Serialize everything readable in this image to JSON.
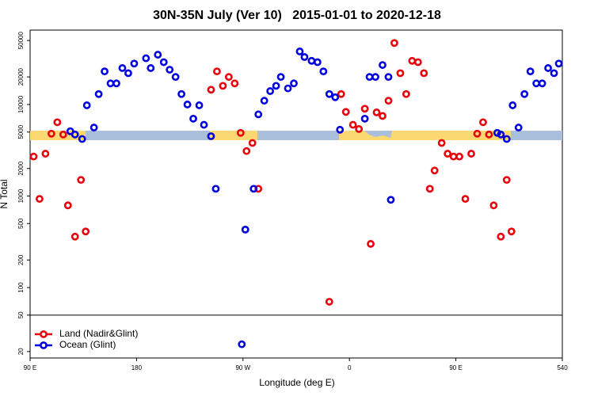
{
  "chart_data": {
    "type": "scatter",
    "title": "30N-35N July (Ver 10)   2015-01-01 to 2020-12-18",
    "x_label": "Longitude (deg E)",
    "y_label": "N Total",
    "log_y": true,
    "legend": "lower left",
    "hline": 50,
    "xlim": [
      90,
      540
    ],
    "xticks": [
      {
        "value": 90,
        "label": "90 E"
      },
      180,
      {
        "value": 270,
        "label": "90 W"
      },
      {
        "value": 360,
        "label": "0"
      },
      {
        "value": 450,
        "label": "90 E"
      },
      540
    ],
    "ylim": [
      17,
      65000
    ],
    "yticks": [
      20,
      50,
      100,
      200,
      500,
      1000,
      2000,
      5000,
      10000,
      20000,
      50000
    ],
    "series": [
      {
        "name": "Land (Nadir&Glint)",
        "color": "#e8000b",
        "x": [
          93,
          98,
          103,
          108,
          113,
          118,
          122,
          128,
          133,
          137,
          243,
          248,
          253,
          258,
          263,
          268,
          273,
          278,
          283,
          343,
          353,
          357,
          363,
          368,
          373,
          378,
          383,
          388,
          393,
          398,
          403,
          408,
          413,
          418,
          423,
          428,
          432,
          438,
          443,
          448,
          453,
          458,
          463,
          468,
          473,
          478,
          482,
          488,
          493,
          497
        ],
        "values": [
          2700,
          930,
          2900,
          4800,
          6400,
          4700,
          790,
          360,
          1500,
          410,
          14500,
          23000,
          16000,
          20000,
          17000,
          4900,
          3100,
          3800,
          1200,
          70,
          13000,
          8300,
          6000,
          5400,
          9000,
          300,
          8200,
          7500,
          11000,
          47000,
          22000,
          13000,
          30000,
          29000,
          22000,
          1200,
          1900,
          3800,
          2900,
          2700,
          2700,
          930,
          2900,
          4800,
          6400,
          4700,
          790,
          360,
          1500,
          410
        ]
      },
      {
        "name": "Ocean (Glint)",
        "color": "#0000e0",
        "x": [
          124,
          128,
          134,
          138,
          144,
          148,
          153,
          158,
          163,
          168,
          173,
          178,
          188,
          192,
          198,
          203,
          208,
          213,
          218,
          223,
          228,
          233,
          237,
          243,
          247,
          269,
          272,
          279,
          283,
          288,
          293,
          298,
          302,
          308,
          313,
          318,
          322,
          328,
          333,
          338,
          343,
          348,
          352,
          373,
          377,
          382,
          388,
          393,
          395,
          485,
          488,
          493,
          498,
          503,
          508,
          513,
          518,
          523,
          528,
          533,
          537
        ],
        "values": [
          5100,
          4700,
          4200,
          9800,
          5600,
          13000,
          23000,
          17000,
          17000,
          25000,
          22000,
          28000,
          32000,
          25000,
          35000,
          29000,
          24000,
          20000,
          13000,
          10000,
          7000,
          9800,
          6000,
          4500,
          1200,
          24,
          430,
          1200,
          7800,
          11000,
          14000,
          16000,
          20000,
          15000,
          17000,
          38000,
          33000,
          30000,
          29000,
          23000,
          13000,
          12000,
          5300,
          7000,
          20000,
          20000,
          27000,
          20000,
          910,
          4900,
          4700,
          4200,
          9800,
          5600,
          13000,
          23000,
          17000,
          17000,
          25000,
          22000,
          28000
        ]
      }
    ]
  }
}
